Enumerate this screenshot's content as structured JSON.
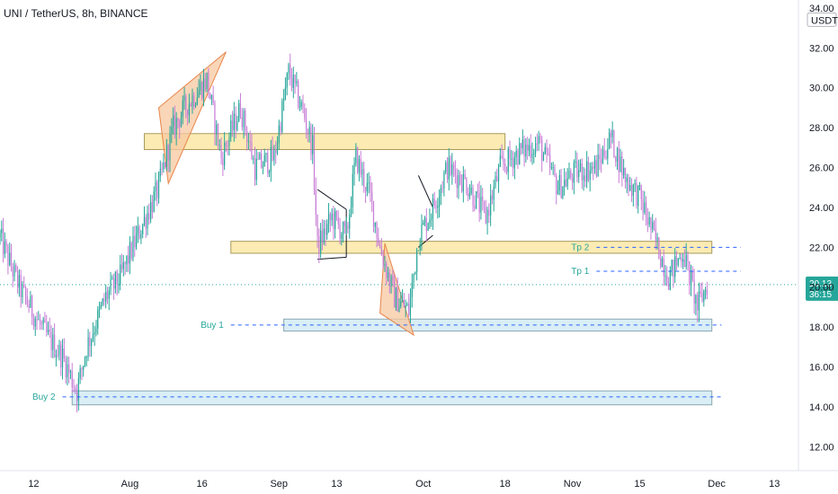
{
  "header": {
    "title": "UNI / TetherUS, 8h, BINANCE"
  },
  "colors": {
    "up": "#26a69a",
    "down": "#c77dd6",
    "zone_yellow": "#fbe8a6",
    "zone_blue": "#d2ebf3",
    "triangle_orange": "#f7c8a0",
    "annotation": "#26a69a",
    "dashed_blue": "#2962ff",
    "current_price": "#26a69a"
  },
  "chart_data": {
    "type": "candlestick",
    "ylim": [
      10.8,
      34.4
    ],
    "unit": "USDT",
    "y_ticks": [
      12.0,
      14.0,
      16.0,
      18.0,
      20.0,
      22.0,
      24.0,
      26.0,
      28.0,
      30.0,
      32.0,
      34.0
    ],
    "y_tick_labels": [
      "12.00",
      "14.00",
      "16.00",
      "18.00",
      "20.00",
      "22.00",
      "24.00",
      "26.00",
      "28.00",
      "30.00",
      "32.00",
      "34.00"
    ],
    "x_ticks": [
      {
        "label": "12",
        "date": "2021-07-12"
      },
      {
        "label": "Aug",
        "date": "2021-08-01"
      },
      {
        "label": "16",
        "date": "2021-08-16"
      },
      {
        "label": "Sep",
        "date": "2021-09-01"
      },
      {
        "label": "13",
        "date": "2021-09-13"
      },
      {
        "label": "Oct",
        "date": "2021-10-01"
      },
      {
        "label": "18",
        "date": "2021-10-18"
      },
      {
        "label": "Nov",
        "date": "2021-11-01"
      },
      {
        "label": "15",
        "date": "2021-11-15"
      },
      {
        "label": "Dec",
        "date": "2021-12-01"
      },
      {
        "label": "13",
        "date": "2021-12-13"
      }
    ],
    "x_range": [
      "2021-07-05",
      "2021-12-18"
    ],
    "price_path": [
      [
        "2021-07-05",
        22.5
      ],
      [
        "2021-07-09",
        20.0
      ],
      [
        "2021-07-14",
        17.8
      ],
      [
        "2021-07-18",
        16.5
      ],
      [
        "2021-07-21",
        14.8
      ],
      [
        "2021-07-23",
        17.0
      ],
      [
        "2021-07-27",
        19.5
      ],
      [
        "2021-07-30",
        20.5
      ],
      [
        "2021-08-03",
        22.8
      ],
      [
        "2021-08-07",
        25.0
      ],
      [
        "2021-08-10",
        28.0
      ],
      [
        "2021-08-13",
        29.2
      ],
      [
        "2021-08-17",
        30.4
      ],
      [
        "2021-08-20",
        26.5
      ],
      [
        "2021-08-24",
        29.0
      ],
      [
        "2021-08-27",
        26.0
      ],
      [
        "2021-08-31",
        26.5
      ],
      [
        "2021-09-03",
        30.8
      ],
      [
        "2021-09-06",
        28.8
      ],
      [
        "2021-09-08",
        27.0
      ],
      [
        "2021-09-09",
        22.0
      ],
      [
        "2021-09-12",
        23.5
      ],
      [
        "2021-09-15",
        22.5
      ],
      [
        "2021-09-17",
        26.5
      ],
      [
        "2021-09-20",
        24.5
      ],
      [
        "2021-09-22",
        22.0
      ],
      [
        "2021-09-25",
        19.5
      ],
      [
        "2021-09-28",
        18.8
      ],
      [
        "2021-09-30",
        22.5
      ],
      [
        "2021-10-03",
        24.0
      ],
      [
        "2021-10-06",
        26.0
      ],
      [
        "2021-10-10",
        25.2
      ],
      [
        "2021-10-14",
        23.5
      ],
      [
        "2021-10-17",
        26.0
      ],
      [
        "2021-10-21",
        26.8
      ],
      [
        "2021-10-25",
        27.2
      ],
      [
        "2021-10-29",
        25.0
      ],
      [
        "2021-11-02",
        25.8
      ],
      [
        "2021-11-06",
        26.0
      ],
      [
        "2021-11-09",
        27.5
      ],
      [
        "2021-11-12",
        25.5
      ],
      [
        "2021-11-15",
        24.5
      ],
      [
        "2021-11-18",
        22.5
      ],
      [
        "2021-11-21",
        20.5
      ],
      [
        "2021-11-24",
        21.8
      ],
      [
        "2021-11-27",
        19.0
      ],
      [
        "2021-11-29",
        20.1
      ]
    ],
    "current_price": {
      "value": 20.13,
      "label": "20.13",
      "countdown": "36:15"
    },
    "zones": [
      {
        "name": "upper-resistance-zone",
        "from": "2021-08-04",
        "to": "2021-10-18",
        "low": 26.9,
        "high": 27.7,
        "color": "zone_yellow"
      },
      {
        "name": "tp-zone",
        "from": "2021-08-22",
        "to": "2021-11-30",
        "low": 21.7,
        "high": 22.3,
        "color": "zone_yellow"
      },
      {
        "name": "buy1-zone",
        "from": "2021-09-02",
        "to": "2021-11-30",
        "low": 17.8,
        "high": 18.4,
        "color": "zone_blue"
      },
      {
        "name": "buy2-zone",
        "from": "2021-07-20",
        "to": "2021-11-30",
        "low": 14.1,
        "high": 14.8,
        "color": "zone_blue"
      }
    ],
    "levels": [
      {
        "label": "Tp 2",
        "value": 22.0,
        "from": "2021-11-06",
        "to": "2021-12-06"
      },
      {
        "label": "Tp 1",
        "value": 20.8,
        "from": "2021-11-06",
        "to": "2021-12-06"
      },
      {
        "label": "Buy 1",
        "value": 18.1,
        "from": "2021-08-22",
        "to": "2021-12-02"
      },
      {
        "label": "Buy 2",
        "value": 14.5,
        "from": "2021-07-18",
        "to": "2021-12-02"
      }
    ],
    "triangles": [
      {
        "points": [
          [
            "2021-08-07",
            29.0
          ],
          [
            "2021-08-21",
            31.8
          ],
          [
            "2021-08-09",
            25.2
          ]
        ],
        "color": "triangle_orange"
      },
      {
        "points": [
          [
            "2021-09-23",
            22.2
          ],
          [
            "2021-09-29",
            17.6
          ],
          [
            "2021-09-22",
            18.7
          ]
        ],
        "color": "triangle_orange"
      }
    ],
    "wedge_lines": [
      [
        [
          "2021-09-09",
          24.9
        ],
        [
          "2021-09-15",
          23.9
        ]
      ],
      [
        [
          "2021-09-09",
          21.4
        ],
        [
          "2021-09-15",
          21.5
        ]
      ],
      [
        [
          "2021-09-15",
          23.9
        ],
        [
          "2021-09-15",
          21.5
        ]
      ],
      [
        [
          "2021-09-30",
          25.6
        ],
        [
          "2021-10-03",
          24.0
        ]
      ],
      [
        [
          "2021-09-30",
          22.0
        ],
        [
          "2021-10-03",
          22.6
        ]
      ]
    ]
  }
}
